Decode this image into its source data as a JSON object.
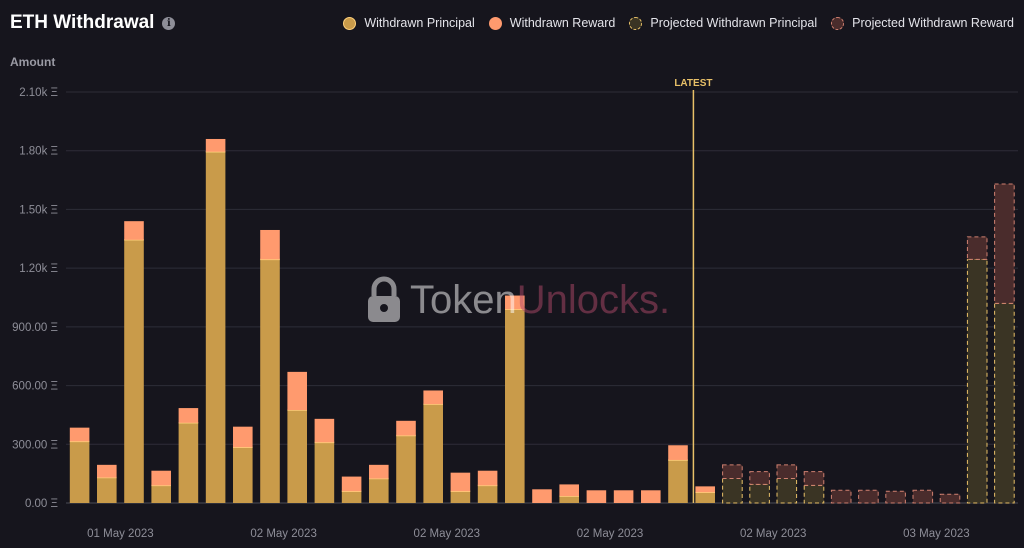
{
  "title": "ETH Withdrawal",
  "info_icon": "info-icon",
  "y_axis_title": "Amount",
  "watermark": {
    "icon": "lock-icon",
    "part1": "Token",
    "part2": "Unlocks",
    "dot": "."
  },
  "colors": {
    "principal": "#c99b4a",
    "principal_top": "#ffd07a",
    "reward": "#ff9a6e",
    "projected_principal_fill": "#3a3424",
    "projected_principal_border": "#e8c068",
    "projected_reward_fill": "#4a2c2c",
    "projected_reward_border": "#d08070",
    "latest": "#e8c068"
  },
  "chart_data": {
    "type": "bar",
    "stacked": true,
    "title": "ETH Withdrawal",
    "ylabel": "Amount",
    "ylim": [
      0,
      2100
    ],
    "y_ticks": [
      "0.00 Ξ",
      "300.00 Ξ",
      "600.00 Ξ",
      "900.00 Ξ",
      "1.20k Ξ",
      "1.50k Ξ",
      "1.80k Ξ",
      "2.10k Ξ"
    ],
    "y_tick_values": [
      0,
      300,
      600,
      900,
      1200,
      1500,
      1800,
      2100
    ],
    "x_tick_labels": [
      {
        "label": "01 May 2023",
        "after_bar": 1
      },
      {
        "label": "02 May 2023",
        "after_bar": 7
      },
      {
        "label": "02 May 2023",
        "after_bar": 13
      },
      {
        "label": "02 May 2023",
        "after_bar": 19
      },
      {
        "label": "02 May 2023",
        "after_bar": 25
      },
      {
        "label": "03 May 2023",
        "after_bar": 31
      }
    ],
    "latest_label": "LATEST",
    "latest_after_bar": 23,
    "legend": [
      "Withdrawn Principal",
      "Withdrawn Reward",
      "Projected Withdrawn Principal",
      "Projected Withdrawn Reward"
    ],
    "bars": [
      {
        "principal": 315,
        "reward": 70,
        "projected": false
      },
      {
        "principal": 130,
        "reward": 65,
        "projected": false
      },
      {
        "principal": 1345,
        "reward": 95,
        "projected": false
      },
      {
        "principal": 90,
        "reward": 75,
        "projected": false
      },
      {
        "principal": 410,
        "reward": 75,
        "projected": false
      },
      {
        "principal": 1795,
        "reward": 65,
        "projected": false
      },
      {
        "principal": 285,
        "reward": 105,
        "projected": false
      },
      {
        "principal": 1245,
        "reward": 150,
        "projected": false
      },
      {
        "principal": 475,
        "reward": 195,
        "projected": false
      },
      {
        "principal": 310,
        "reward": 120,
        "projected": false
      },
      {
        "principal": 60,
        "reward": 75,
        "projected": false
      },
      {
        "principal": 125,
        "reward": 70,
        "projected": false
      },
      {
        "principal": 345,
        "reward": 75,
        "projected": false
      },
      {
        "principal": 505,
        "reward": 70,
        "projected": false
      },
      {
        "principal": 60,
        "reward": 95,
        "projected": false
      },
      {
        "principal": 90,
        "reward": 75,
        "projected": false
      },
      {
        "principal": 990,
        "reward": 70,
        "projected": false
      },
      {
        "principal": 0,
        "reward": 70,
        "projected": false
      },
      {
        "principal": 35,
        "reward": 60,
        "projected": false
      },
      {
        "principal": 0,
        "reward": 65,
        "projected": false
      },
      {
        "principal": 0,
        "reward": 65,
        "projected": false
      },
      {
        "principal": 0,
        "reward": 65,
        "projected": false
      },
      {
        "principal": 220,
        "reward": 75,
        "projected": false
      },
      {
        "principal": 55,
        "reward": 30,
        "projected": false
      },
      {
        "principal": 125,
        "reward": 70,
        "projected": true
      },
      {
        "principal": 95,
        "reward": 65,
        "projected": true
      },
      {
        "principal": 125,
        "reward": 70,
        "projected": true
      },
      {
        "principal": 90,
        "reward": 70,
        "projected": true
      },
      {
        "principal": 0,
        "reward": 65,
        "projected": true
      },
      {
        "principal": 0,
        "reward": 65,
        "projected": true
      },
      {
        "principal": 0,
        "reward": 60,
        "projected": true
      },
      {
        "principal": 0,
        "reward": 65,
        "projected": true
      },
      {
        "principal": 0,
        "reward": 45,
        "projected": true
      },
      {
        "principal": 1245,
        "reward": 115,
        "projected": true
      },
      {
        "principal": 1020,
        "reward": 610,
        "projected": true
      }
    ]
  }
}
